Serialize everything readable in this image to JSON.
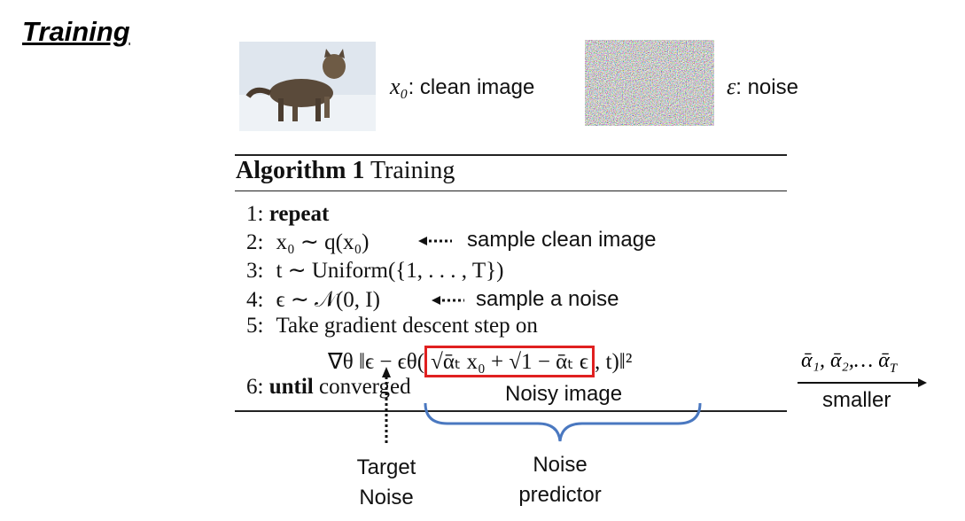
{
  "slide": {
    "title": "Training"
  },
  "images": [
    {
      "symbol": "x₀",
      "caption": ": clean image"
    },
    {
      "symbol": "ε",
      "caption": ": noise"
    }
  ],
  "algorithm": {
    "title_bold": "Algorithm 1",
    "title": "Training",
    "lines": [
      {
        "number": "1:",
        "keyword": "repeat"
      },
      {
        "number": "2:",
        "text": "x₀ ∼ q(x₀)"
      },
      {
        "number": "3:",
        "text": "t ∼ Uniform({1, . . . , T})"
      },
      {
        "number": "4:",
        "text": "ϵ ∼ 𝒩(0, I)"
      },
      {
        "number": "5:",
        "text": "Take gradient descent step on"
      },
      {
        "number": "6:",
        "keyword": "until",
        "text": "converged"
      }
    ],
    "formula": {
      "before": "∇θ ‖ϵ − ϵθ(",
      "boxed": "√ᾱₜ x₀ + √1 − ᾱₜ ϵ",
      "after": ", t)‖²"
    }
  },
  "annotations": {
    "sample_clean": "sample clean image",
    "sample_noise": "sample a noise",
    "noisy_image": "Noisy image",
    "target_noise": [
      "Target",
      "Noise"
    ],
    "noise_predictor": [
      "Noise",
      "predictor"
    ],
    "alphas": "ᾱ₁, ᾱ₂,… ᾱ",
    "alphas_sub": "T",
    "smaller": "smaller"
  }
}
